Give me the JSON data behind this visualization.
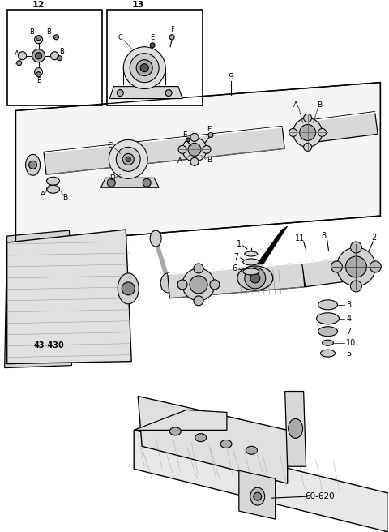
{
  "bg_color": "#ffffff",
  "line_color": "#000000",
  "fig_width": 4.8,
  "fig_height": 6.56,
  "dpi": 100,
  "labels": {
    "box12_title": "12",
    "box13_title": "13",
    "label_9": "9",
    "label_2": "2",
    "label_43_430": "43-430",
    "label_60_620": "60-620",
    "label_1": "1",
    "label_3": "3",
    "label_4": "4",
    "label_5": "5",
    "label_6": "6",
    "label_7": "7",
    "label_8": "8",
    "label_10": "10",
    "label_11": "11"
  }
}
